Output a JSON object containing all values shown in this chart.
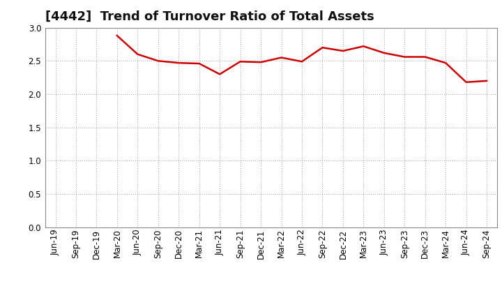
{
  "title": "[4442]  Trend of Turnover Ratio of Total Assets",
  "x_labels": [
    "Jun-19",
    "Sep-19",
    "Dec-19",
    "Mar-20",
    "Jun-20",
    "Sep-20",
    "Dec-20",
    "Mar-21",
    "Jun-21",
    "Sep-21",
    "Dec-21",
    "Mar-22",
    "Jun-22",
    "Sep-22",
    "Dec-22",
    "Mar-23",
    "Jun-23",
    "Sep-23",
    "Dec-23",
    "Mar-24",
    "Jun-24",
    "Sep-24"
  ],
  "values": [
    null,
    null,
    null,
    2.88,
    2.6,
    2.5,
    2.47,
    2.46,
    2.3,
    2.49,
    2.48,
    2.55,
    2.49,
    2.7,
    2.65,
    2.72,
    2.62,
    2.56,
    2.56,
    2.47,
    2.18,
    2.2
  ],
  "ylim": [
    0.0,
    3.0
  ],
  "yticks": [
    0.0,
    0.5,
    1.0,
    1.5,
    2.0,
    2.5,
    3.0
  ],
  "line_color": "#cc0000",
  "line_width": 1.8,
  "background_color": "#ffffff",
  "grid_color": "#999999",
  "title_fontsize": 13,
  "tick_fontsize": 8.5
}
